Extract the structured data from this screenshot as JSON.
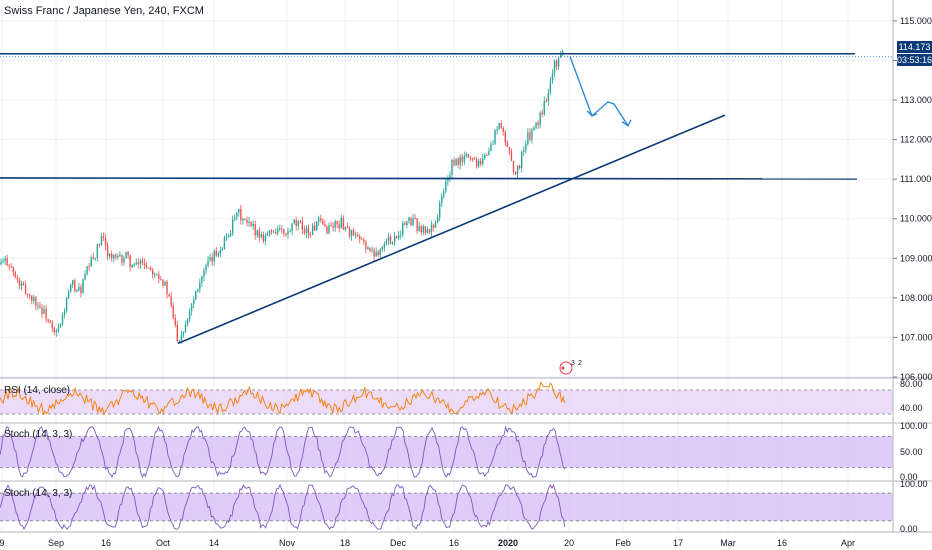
{
  "header": {
    "title": "Swiss Franc / Japanese Yen, 240, FXCM"
  },
  "chart_data": [
    {
      "type": "candlestick",
      "title": "Swiss Franc / Japanese Yen, 240, FXCM",
      "symbol": "CHFJPY",
      "interval": "240",
      "source": "FXCM",
      "x_ticks": [
        "9",
        "Sep",
        "16",
        "Oct",
        "14",
        "Nov",
        "18",
        "Dec",
        "16",
        "2020",
        "20",
        "Feb",
        "17",
        "Mar",
        "16",
        "Apr"
      ],
      "y_ticks": [
        "115.000",
        "114.000",
        "113.000",
        "112.000",
        "111.000",
        "110.000",
        "109.000",
        "108.000",
        "107.000",
        "106.000"
      ],
      "ylim": [
        106.0,
        115.2
      ],
      "last_price": "114.173",
      "countdown": "03:53:16",
      "up_color": "#26a69a",
      "down_color": "#ef5350",
      "drawing_color": "#0d3a78",
      "arrow_color": "#2e8cd6",
      "path_points": [
        [
          0,
          108.85
        ],
        [
          8,
          108.95
        ],
        [
          16,
          108.45
        ],
        [
          26,
          108.15
        ],
        [
          36,
          107.9
        ],
        [
          46,
          107.55
        ],
        [
          54,
          107.05
        ],
        [
          60,
          107.25
        ],
        [
          66,
          107.9
        ],
        [
          72,
          108.35
        ],
        [
          80,
          108.15
        ],
        [
          88,
          108.75
        ],
        [
          96,
          109.15
        ],
        [
          102,
          109.5
        ],
        [
          110,
          109.05
        ],
        [
          118,
          108.95
        ],
        [
          126,
          109.05
        ],
        [
          134,
          108.75
        ],
        [
          142,
          108.95
        ],
        [
          150,
          108.75
        ],
        [
          158,
          108.65
        ],
        [
          166,
          108.25
        ],
        [
          172,
          107.65
        ],
        [
          178,
          106.95
        ],
        [
          184,
          107.25
        ],
        [
          190,
          107.75
        ],
        [
          198,
          108.35
        ],
        [
          206,
          108.75
        ],
        [
          214,
          109.05
        ],
        [
          222,
          109.35
        ],
        [
          230,
          109.7
        ],
        [
          238,
          110.15
        ],
        [
          246,
          109.85
        ],
        [
          254,
          109.75
        ],
        [
          262,
          109.55
        ],
        [
          270,
          109.65
        ],
        [
          278,
          109.75
        ],
        [
          286,
          109.55
        ],
        [
          294,
          109.85
        ],
        [
          302,
          109.8
        ],
        [
          310,
          109.65
        ],
        [
          318,
          109.9
        ],
        [
          326,
          109.75
        ],
        [
          334,
          109.85
        ],
        [
          342,
          109.9
        ],
        [
          350,
          109.65
        ],
        [
          358,
          109.45
        ],
        [
          366,
          109.35
        ],
        [
          372,
          109.1
        ],
        [
          380,
          109.25
        ],
        [
          388,
          109.45
        ],
        [
          396,
          109.55
        ],
        [
          404,
          109.85
        ],
        [
          412,
          109.95
        ],
        [
          420,
          109.75
        ],
        [
          428,
          109.65
        ],
        [
          436,
          109.95
        ],
        [
          444,
          110.75
        ],
        [
          452,
          111.35
        ],
        [
          460,
          111.45
        ],
        [
          468,
          111.6
        ],
        [
          476,
          111.45
        ],
        [
          484,
          111.55
        ],
        [
          492,
          111.85
        ],
        [
          498,
          112.45
        ],
        [
          504,
          112.05
        ],
        [
          510,
          111.65
        ],
        [
          516,
          111.05
        ],
        [
          522,
          111.65
        ],
        [
          528,
          112.05
        ],
        [
          534,
          112.25
        ],
        [
          540,
          112.55
        ],
        [
          546,
          113.05
        ],
        [
          552,
          113.75
        ],
        [
          558,
          114.05
        ],
        [
          563,
          114.2
        ]
      ],
      "annotations": {
        "resistance_level": 114.17,
        "support_level": 111.03,
        "trendline": [
          [
            178,
            106.85
          ],
          [
            725,
            112.62
          ]
        ],
        "projected_path": [
          [
            570,
            114.1
          ],
          [
            592,
            112.6
          ],
          [
            608,
            112.95
          ],
          [
            614,
            112.9
          ],
          [
            628,
            112.35
          ]
        ],
        "event_markers": [
          "3",
          "2"
        ]
      },
      "panes": [
        {
          "name": "RSI",
          "label": "RSI (14, close)",
          "y_ticks": [
            "80.00",
            "40.00"
          ],
          "band": [
            30,
            70
          ],
          "range": [
            20,
            85
          ],
          "line_color": "#f57c00",
          "band_color": "#e7d3f8"
        },
        {
          "name": "Stoch",
          "label": "Stoch (14, 3, 3)",
          "y_ticks": [
            "100.00",
            "50.00",
            "0.00"
          ],
          "band": [
            20,
            80
          ],
          "range": [
            0,
            100
          ],
          "line_color": "#7e57c2",
          "band_color": "#d8bff8"
        },
        {
          "name": "Stoch",
          "label": "Stoch (14, 3, 3)",
          "y_ticks": [
            "100.00",
            "0.00"
          ],
          "band": [
            20,
            80
          ],
          "range": [
            0,
            100
          ],
          "line_color": "#7e57c2",
          "band_color": "#d8bff8"
        }
      ]
    }
  ]
}
